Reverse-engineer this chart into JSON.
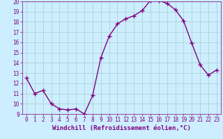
{
  "x": [
    0,
    1,
    2,
    3,
    4,
    5,
    6,
    7,
    8,
    9,
    10,
    11,
    12,
    13,
    14,
    15,
    16,
    17,
    18,
    19,
    20,
    21,
    22,
    23
  ],
  "y": [
    12.5,
    11.0,
    11.3,
    10.0,
    9.5,
    9.4,
    9.5,
    9.0,
    10.8,
    14.5,
    16.6,
    17.8,
    18.3,
    18.6,
    19.1,
    20.1,
    20.1,
    19.8,
    19.2,
    18.1,
    15.9,
    13.8,
    12.8,
    13.3
  ],
  "line_color": "#800080",
  "marker": "+",
  "marker_size": 4,
  "bg_color": "#cceeff",
  "grid_color": "#aacccc",
  "xlabel": "Windchill (Refroidissement éolien,°C)",
  "xlabel_color": "#800080",
  "tick_color": "#800080",
  "ylim": [
    9,
    20
  ],
  "xlim": [
    -0.5,
    23.5
  ],
  "yticks": [
    9,
    10,
    11,
    12,
    13,
    14,
    15,
    16,
    17,
    18,
    19,
    20
  ],
  "xticks": [
    0,
    1,
    2,
    3,
    4,
    5,
    6,
    7,
    8,
    9,
    10,
    11,
    12,
    13,
    14,
    15,
    16,
    17,
    18,
    19,
    20,
    21,
    22,
    23
  ],
  "tick_fontsize": 5.5,
  "xlabel_fontsize": 6.5,
  "line_width": 1.0
}
